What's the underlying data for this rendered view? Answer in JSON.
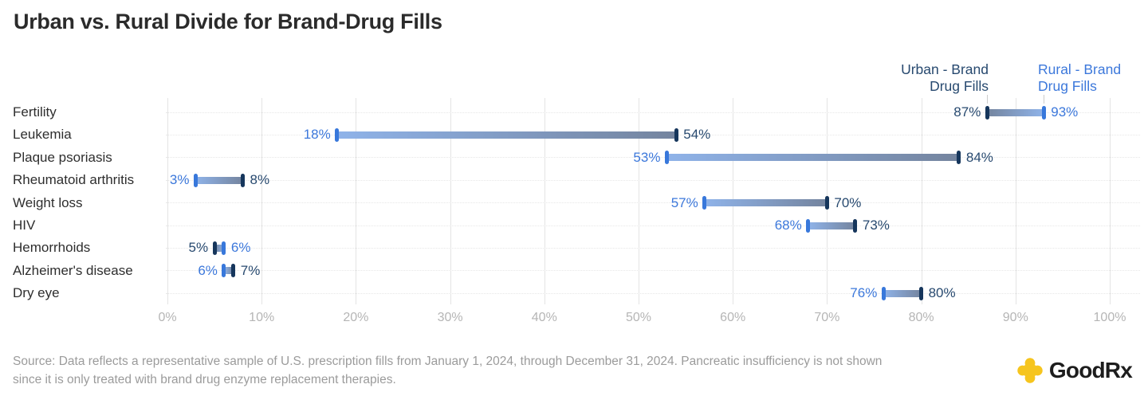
{
  "title": "Urban vs. Rural Divide for Brand-Drug Fills",
  "chart_data": {
    "type": "bar",
    "variant": "dumbbell",
    "title": "Urban vs. Rural Divide for Brand-Drug Fills",
    "xlabel": "",
    "ylabel": "",
    "x_axis": {
      "min": 0,
      "max": 100,
      "grid": true,
      "ticks": [
        {
          "value": 0,
          "label": "0%"
        },
        {
          "value": 10,
          "label": "10%"
        },
        {
          "value": 20,
          "label": "20%"
        },
        {
          "value": 30,
          "label": "30%"
        },
        {
          "value": 40,
          "label": "40%"
        },
        {
          "value": 50,
          "label": "50%"
        },
        {
          "value": 60,
          "label": "60%"
        },
        {
          "value": 70,
          "label": "70%"
        },
        {
          "value": 80,
          "label": "80%"
        },
        {
          "value": 90,
          "label": "90%"
        },
        {
          "value": 100,
          "label": "100%"
        }
      ]
    },
    "series": {
      "urban": {
        "name": "Urban - Brand Drug Fills",
        "label_lines": [
          "Urban - Brand",
          "Drug Fills"
        ],
        "text_color": "#27496F",
        "cap_color": "#16365C",
        "bar_color": "#74849E"
      },
      "rural": {
        "name": "Rural - Brand Drug Fills",
        "label_lines": [
          "Rural - Brand",
          "Drug Fills"
        ],
        "text_color": "#3C78DB",
        "cap_color": "#3878DB",
        "bar_color": "#8FB3E9"
      }
    },
    "rows": [
      {
        "condition": "Fertility",
        "urban": 87,
        "rural": 93
      },
      {
        "condition": "Leukemia",
        "urban": 54,
        "rural": 18
      },
      {
        "condition": "Plaque psoriasis",
        "urban": 84,
        "rural": 53
      },
      {
        "condition": "Rheumatoid arthritis",
        "urban": 8,
        "rural": 3
      },
      {
        "condition": "Weight loss",
        "urban": 70,
        "rural": 57
      },
      {
        "condition": "HIV",
        "urban": 73,
        "rural": 68
      },
      {
        "condition": "Hemorrhoids",
        "urban": 5,
        "rural": 6
      },
      {
        "condition": "Alzheimer's disease",
        "urban": 7,
        "rural": 6
      },
      {
        "condition": "Dry eye",
        "urban": 80,
        "rural": 76
      }
    ],
    "value_suffix": "%",
    "legend_position": "top-right"
  },
  "source": {
    "lines": [
      "Source: Data reflects a representative sample of U.S. prescription fills from January 1, 2024, through December 31, 2024. Pancreatic insufficiency is not shown",
      "since it is only treated with brand drug enzyme replacement therapies."
    ]
  },
  "footer": {
    "logo_text": "GoodRx",
    "logo_color": "#F6C51E"
  }
}
